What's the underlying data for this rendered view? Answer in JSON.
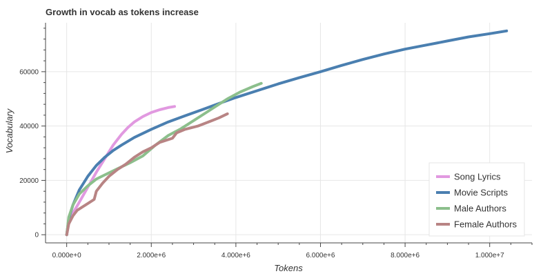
{
  "chart_data": {
    "type": "line",
    "title": "Growth in vocab as tokens increase",
    "xlabel": "Tokens",
    "ylabel": "Vocabulary",
    "xlim": [
      -500000,
      11000000
    ],
    "ylim": [
      -3000,
      78000
    ],
    "x_ticks": [
      0,
      2000000,
      4000000,
      6000000,
      8000000,
      10000000
    ],
    "x_tick_labels": [
      "0.000e+0",
      "2.000e+6",
      "4.000e+6",
      "6.000e+6",
      "8.000e+6",
      "1.000e+7"
    ],
    "y_ticks": [
      0,
      20000,
      40000,
      60000
    ],
    "y_tick_labels": [
      "0",
      "20000",
      "40000",
      "60000"
    ],
    "grid": true,
    "legend_position": "bottom-right",
    "series": [
      {
        "name": "Song Lyrics",
        "color": "#e199e0",
        "x": [
          0,
          50000,
          150000,
          300000,
          500000,
          700000,
          900000,
          1100000,
          1300000,
          1450000,
          1600000,
          1800000,
          2000000,
          2200000,
          2400000,
          2550000
        ],
        "y": [
          0,
          4500,
          8000,
          12000,
          17500,
          23000,
          28000,
          33000,
          37000,
          39500,
          41500,
          43500,
          45000,
          46000,
          46800,
          47200
        ]
      },
      {
        "name": "Movie Scripts",
        "color": "#4a7fb0",
        "x": [
          0,
          50000,
          150000,
          300000,
          500000,
          700000,
          900000,
          1100000,
          1300000,
          1600000,
          2000000,
          2400000,
          2800000,
          3200000,
          3600000,
          4000000,
          4500000,
          5000000,
          5500000,
          6000000,
          6500000,
          7000000,
          7500000,
          8000000,
          8500000,
          9000000,
          9500000,
          10000000,
          10400000
        ],
        "y": [
          0,
          6000,
          11000,
          16500,
          21500,
          25500,
          28500,
          31000,
          33000,
          35800,
          38800,
          41500,
          43800,
          46000,
          48300,
          50500,
          53000,
          55500,
          57800,
          60000,
          62300,
          64500,
          66500,
          68300,
          69800,
          71300,
          72800,
          74000,
          75000
        ]
      },
      {
        "name": "Male Authors",
        "color": "#8cbf8c",
        "x": [
          0,
          50000,
          150000,
          300000,
          500000,
          700000,
          900000,
          1100000,
          1300000,
          1500000,
          1800000,
          2100000,
          2400000,
          2700000,
          3000000,
          3300000,
          3500000,
          3800000,
          4100000,
          4400000,
          4600000
        ],
        "y": [
          0,
          6500,
          11000,
          15000,
          18000,
          20500,
          22000,
          23500,
          25000,
          26500,
          29000,
          33000,
          36500,
          39000,
          42000,
          45000,
          47000,
          50000,
          52500,
          54500,
          55700
        ]
      },
      {
        "name": "Female Authors",
        "color": "#b88484",
        "x": [
          0,
          50000,
          150000,
          250000,
          400000,
          550000,
          650000,
          700000,
          850000,
          1000000,
          1200000,
          1400000,
          1600000,
          1800000,
          2000000,
          2200000,
          2500000,
          2600000,
          2800000,
          3100000,
          3400000,
          3600000,
          3800000
        ],
        "y": [
          0,
          4000,
          7000,
          9000,
          10500,
          12000,
          13000,
          16000,
          19000,
          21500,
          24000,
          26000,
          28500,
          30500,
          32000,
          34000,
          35500,
          37500,
          38800,
          40000,
          41800,
          43000,
          44500
        ]
      }
    ]
  }
}
